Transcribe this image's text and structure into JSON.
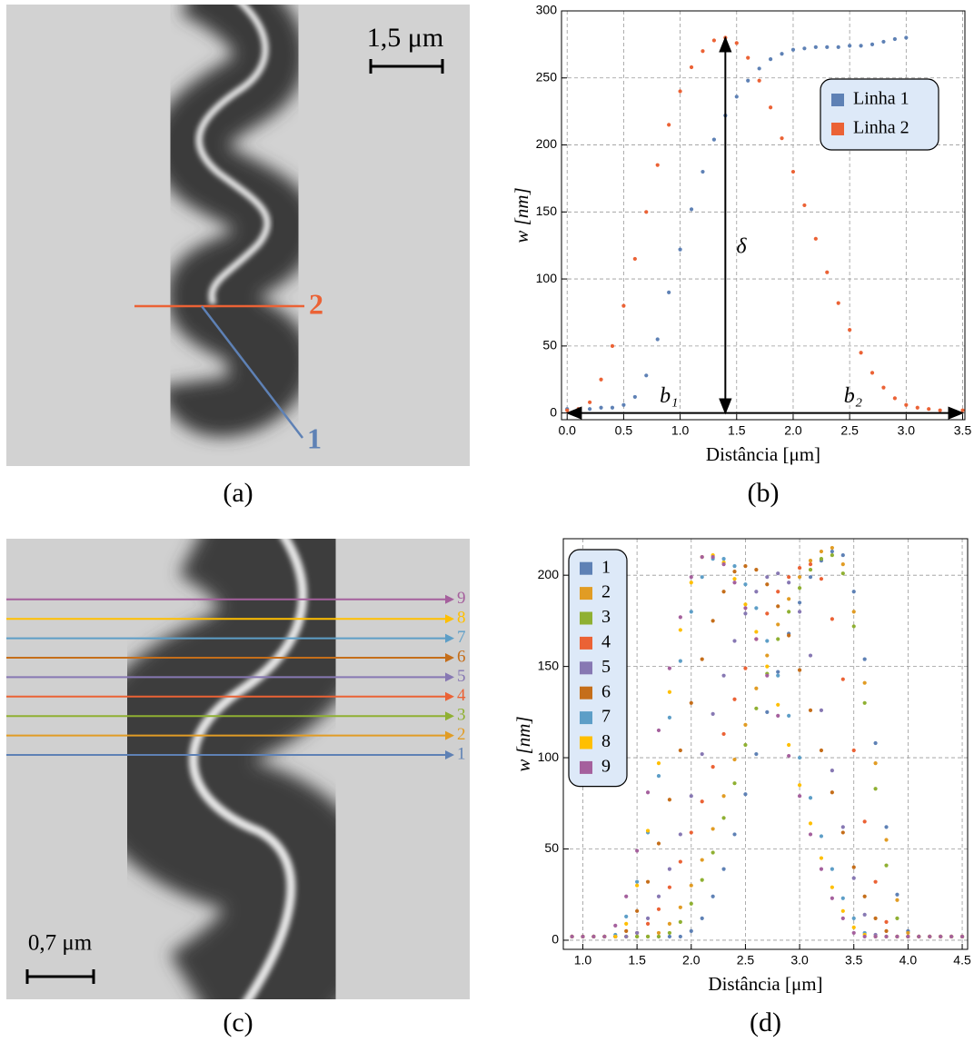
{
  "chart_data": [
    {
      "type": "scatter",
      "caption": "(b)",
      "x_label": "Distância [μm]",
      "y_label": "w [nm]",
      "x": [
        0.0,
        0.1,
        0.2,
        0.3,
        0.4,
        0.5,
        0.6,
        0.7,
        0.8,
        0.9,
        1.0,
        1.1,
        1.2,
        1.3,
        1.4,
        1.5,
        1.6,
        1.7,
        1.8,
        1.9,
        2.0,
        2.1,
        2.2,
        2.3,
        2.4,
        2.5,
        2.6,
        2.7,
        2.8,
        2.9,
        3.0,
        3.1,
        3.2,
        3.3,
        3.4,
        3.5
      ],
      "series": [
        {
          "name": "Linha 1",
          "color": "#5e81b5",
          "values": [
            3,
            3,
            3,
            4,
            4,
            6,
            12,
            28,
            55,
            90,
            122,
            152,
            180,
            204,
            222,
            236,
            248,
            257,
            264,
            268,
            271,
            272,
            273,
            273,
            273,
            274,
            274,
            275,
            277,
            279,
            280,
            null,
            null,
            null,
            null,
            null
          ]
        },
        {
          "name": "Linha 2",
          "color": "#eb6235",
          "values": [
            2,
            3,
            8,
            25,
            50,
            80,
            115,
            150,
            185,
            215,
            240,
            258,
            270,
            278,
            280,
            276,
            265,
            248,
            228,
            205,
            180,
            155,
            130,
            105,
            82,
            62,
            45,
            30,
            19,
            11,
            6,
            4,
            3,
            2,
            2,
            2
          ]
        }
      ],
      "annotations": {
        "height": "δ",
        "left_base": "b₁",
        "right_base": "b₂"
      },
      "xlim": [
        -0.05,
        3.52
      ],
      "ylim": [
        -5,
        300
      ],
      "xticks": [
        {
          "value": 0,
          "label": "0.0"
        },
        0.5,
        {
          "value": 1,
          "label": "1.0"
        },
        1.5,
        {
          "value": 2,
          "label": "2.0"
        },
        2.5,
        {
          "value": 3,
          "label": "3.0"
        },
        3.5
      ],
      "yticks": [
        0,
        50,
        100,
        150,
        200,
        250,
        300
      ],
      "grid": true,
      "legend": "upper right"
    },
    {
      "type": "scatter",
      "caption": "(d)",
      "x_label": "Distância [μm]",
      "y_label": "w [nm]",
      "x": [
        0.9,
        1.0,
        1.1,
        1.2,
        1.3,
        1.4,
        1.5,
        1.6,
        1.7,
        1.8,
        1.9,
        2.0,
        2.1,
        2.2,
        2.3,
        2.4,
        2.5,
        2.6,
        2.7,
        2.8,
        2.9,
        3.0,
        3.1,
        3.2,
        3.3,
        3.4,
        3.5,
        3.6,
        3.7,
        3.8,
        3.9,
        4.0,
        4.1,
        4.2,
        4.3,
        4.4,
        4.5
      ],
      "series": [
        {
          "name": "1",
          "color": "#5e81b5",
          "values": [
            2,
            2,
            2,
            2,
            2,
            2,
            2,
            2,
            2,
            2,
            2,
            5,
            12,
            24,
            39,
            58,
            80,
            102,
            125,
            147,
            168,
            185,
            199,
            208,
            213,
            211,
            191,
            154,
            108,
            62,
            25,
            5,
            2,
            2,
            2,
            2,
            2
          ]
        },
        {
          "name": "2",
          "color": "#e19c24",
          "values": [
            2,
            2,
            2,
            2,
            2,
            2,
            2,
            2,
            4,
            9,
            18,
            30,
            44,
            61,
            79,
            99,
            118,
            138,
            156,
            173,
            187,
            199,
            208,
            213,
            215,
            206,
            180,
            141,
            97,
            55,
            22,
            4,
            2,
            2,
            2,
            2,
            2
          ]
        },
        {
          "name": "3",
          "color": "#8fb032",
          "values": [
            2,
            2,
            2,
            2,
            2,
            2,
            2,
            2,
            2,
            4,
            10,
            20,
            33,
            48,
            67,
            86,
            107,
            127,
            146,
            165,
            180,
            193,
            203,
            209,
            211,
            201,
            172,
            130,
            83,
            41,
            12,
            2,
            2,
            2,
            2,
            2,
            2
          ]
        },
        {
          "name": "4",
          "color": "#eb6235",
          "values": [
            2,
            2,
            2,
            2,
            2,
            2,
            4,
            9,
            17,
            29,
            43,
            59,
            76,
            95,
            113,
            132,
            149,
            165,
            179,
            191,
            199,
            204,
            206,
            198,
            176,
            143,
            104,
            65,
            32,
            10,
            2,
            2,
            2,
            2,
            2,
            2,
            2
          ]
        },
        {
          "name": "5",
          "color": "#8778b3",
          "values": [
            2,
            2,
            2,
            2,
            2,
            2,
            4,
            12,
            24,
            39,
            58,
            79,
            102,
            124,
            145,
            164,
            179,
            191,
            199,
            201,
            196,
            180,
            156,
            126,
            93,
            62,
            34,
            14,
            3,
            2,
            2,
            2,
            2,
            2,
            2,
            2,
            2
          ]
        },
        {
          "name": "6",
          "color": "#c56e1a",
          "values": [
            2,
            2,
            2,
            2,
            2,
            5,
            16,
            32,
            53,
            77,
            104,
            130,
            154,
            175,
            191,
            202,
            205,
            203,
            195,
            183,
            167,
            148,
            126,
            104,
            81,
            59,
            40,
            24,
            12,
            5,
            2,
            2,
            2,
            2,
            2,
            2,
            2
          ]
        },
        {
          "name": "7",
          "color": "#5d9ec7",
          "values": [
            2,
            2,
            2,
            2,
            3,
            13,
            32,
            59,
            90,
            122,
            153,
            180,
            199,
            209,
            209,
            205,
            195,
            182,
            164,
            145,
            123,
            100,
            78,
            57,
            39,
            23,
            12,
            4,
            2,
            2,
            2,
            2,
            2,
            2,
            2,
            2,
            2
          ]
        },
        {
          "name": "8",
          "color": "#ffbf00",
          "values": [
            2,
            2,
            2,
            2,
            2,
            9,
            30,
            60,
            97,
            136,
            170,
            196,
            210,
            211,
            207,
            198,
            184,
            169,
            150,
            129,
            107,
            85,
            64,
            45,
            29,
            16,
            7,
            3,
            2,
            2,
            2,
            2,
            2,
            2,
            2,
            2,
            2
          ]
        },
        {
          "name": "9",
          "color": "#a5609d",
          "values": [
            2,
            2,
            2,
            2,
            8,
            24,
            49,
            81,
            115,
            149,
            177,
            199,
            210,
            210,
            206,
            196,
            182,
            165,
            145,
            123,
            101,
            79,
            58,
            39,
            23,
            12,
            4,
            2,
            2,
            2,
            2,
            2,
            2,
            2,
            2,
            2,
            2
          ]
        }
      ],
      "xlim": [
        0.82,
        4.55
      ],
      "ylim": [
        -5,
        220
      ],
      "xticks": [
        {
          "value": 1,
          "label": "1.0"
        },
        1.5,
        {
          "value": 2,
          "label": "2.0"
        },
        2.5,
        {
          "value": 3,
          "label": "3.0"
        },
        3.5,
        {
          "value": 4,
          "label": "4.0"
        },
        4.5
      ],
      "yticks": [
        0,
        50,
        100,
        150,
        200
      ],
      "grid": true,
      "legend": "upper left"
    }
  ],
  "images": [
    {
      "caption": "(a)",
      "scale_bar": "1,5 μm",
      "lines": [
        "2",
        "1"
      ]
    },
    {
      "caption": "(c)",
      "scale_bar": "0,7 μm"
    }
  ]
}
